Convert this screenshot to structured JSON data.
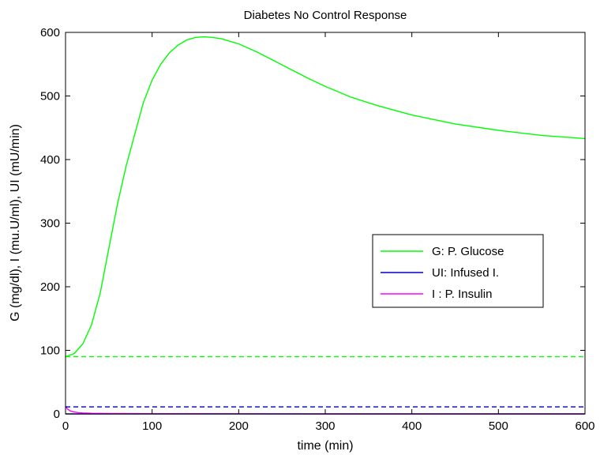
{
  "chart_data": {
    "type": "line",
    "title": "Diabetes No Control Response",
    "xlabel": "time (min)",
    "ylabel": "G (mg/dl), I (mu.U/ml), UI (mU/min)",
    "xlim": [
      0,
      600
    ],
    "ylim": [
      0,
      600
    ],
    "xticks": [
      0,
      100,
      200,
      300,
      400,
      500,
      600
    ],
    "yticks": [
      0,
      100,
      200,
      300,
      400,
      500,
      600
    ],
    "grid": false,
    "legend_position": "center-right",
    "series": [
      {
        "name": "G: P. Glucose",
        "color": "#00ff00",
        "style": "solid",
        "x": [
          0,
          10,
          20,
          30,
          40,
          50,
          60,
          70,
          80,
          90,
          100,
          110,
          120,
          130,
          140,
          150,
          160,
          170,
          180,
          190,
          200,
          220,
          240,
          260,
          280,
          300,
          330,
          360,
          400,
          450,
          500,
          550,
          600
        ],
        "y": [
          90,
          95,
          110,
          140,
          190,
          260,
          330,
          390,
          440,
          490,
          525,
          550,
          568,
          580,
          588,
          592,
          593,
          592,
          590,
          586,
          582,
          570,
          556,
          542,
          528,
          515,
          498,
          485,
          470,
          456,
          446,
          438,
          433
        ]
      },
      {
        "name": "UI: Infused I.",
        "color": "#0000cc",
        "style": "solid",
        "x": [
          0,
          600
        ],
        "y": [
          0,
          0
        ]
      },
      {
        "name": "I : P. Insulin",
        "color": "#ff00ff",
        "style": "solid",
        "x": [
          0,
          2,
          5,
          10,
          15,
          20,
          30,
          50,
          100,
          200,
          300,
          400,
          500,
          600
        ],
        "y": [
          12,
          8,
          5,
          3,
          2,
          1.5,
          1,
          0.6,
          0.4,
          0.2,
          0,
          0,
          0,
          0
        ]
      },
      {
        "color": "#00ff00",
        "style": "dashed",
        "x": [
          0,
          600
        ],
        "y": [
          90,
          90
        ]
      },
      {
        "color": "#0000cc",
        "style": "dashed",
        "x": [
          0,
          600
        ],
        "y": [
          11,
          11
        ]
      }
    ]
  }
}
